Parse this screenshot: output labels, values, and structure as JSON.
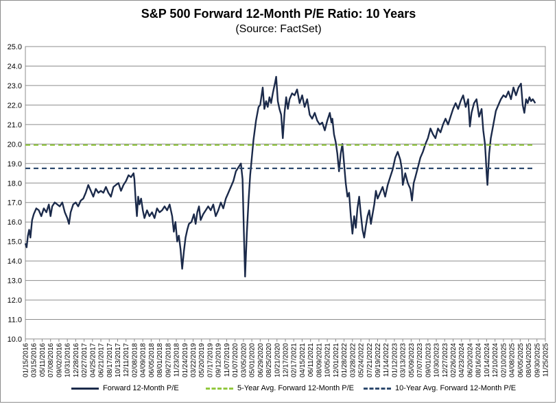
{
  "chart_data": {
    "type": "line",
    "title": "S&P 500 Forward 12-Month P/E Ratio: 10 Years",
    "subtitle": "(Source: FactSet)",
    "ylim": [
      10.0,
      25.0
    ],
    "y_ticks": [
      "10.0",
      "11.0",
      "12.0",
      "13.0",
      "14.0",
      "15.0",
      "16.0",
      "17.0",
      "18.0",
      "19.0",
      "20.0",
      "21.0",
      "22.0",
      "23.0",
      "24.0",
      "25.0"
    ],
    "x_ticks": [
      "01/15/2016",
      "03/15/2016",
      "05/11/2016",
      "07/08/2016",
      "09/02/2016",
      "10/31/2016",
      "12/28/2016",
      "02/27/2017",
      "04/25/2017",
      "06/21/2017",
      "08/17/2017",
      "10/13/2017",
      "12/11/2017",
      "02/08/2018",
      "04/09/2018",
      "06/05/2018",
      "08/01/2018",
      "09/27/2018",
      "11/23/2018",
      "01/24/2019",
      "03/22/2019",
      "05/20/2019",
      "07/17/2019",
      "09/12/2019",
      "11/07/2019",
      "01/07/2020",
      "03/05/2020",
      "05/01/2020",
      "06/29/2020",
      "08/25/2020",
      "10/21/2020",
      "12/17/2020",
      "02/17/2021",
      "04/15/2021",
      "06/11/2021",
      "08/09/2021",
      "10/05/2021",
      "12/01/2021",
      "01/28/2022",
      "03/28/2022",
      "05/24/2022",
      "07/21/2022",
      "09/19/2022",
      "11/14/2022",
      "01/12/2023",
      "03/13/2023",
      "05/09/2023",
      "07/07/2023",
      "09/01/2023",
      "10/30/2023",
      "12/27/2023",
      "02/26/2024",
      "04/23/2024",
      "06/20/2024",
      "08/16/2024",
      "10/14/2024",
      "12/10/2024",
      "02/10/2025",
      "04/08/2025",
      "06/05/2025",
      "08/04/2025",
      "09/30/2025",
      "11/25/2025"
    ],
    "grid": true,
    "legend_position": "bottom",
    "series": [
      {
        "name": "Forward 12-Month P/E",
        "color": "#1b2a4a",
        "style": "solid",
        "values": [
          [
            0.0,
            14.9
          ],
          [
            0.15,
            14.7
          ],
          [
            0.3,
            15.3
          ],
          [
            0.45,
            15.6
          ],
          [
            0.6,
            15.2
          ],
          [
            0.8,
            16.1
          ],
          [
            1.0,
            16.4
          ],
          [
            1.3,
            16.7
          ],
          [
            1.6,
            16.6
          ],
          [
            1.9,
            16.3
          ],
          [
            2.2,
            16.7
          ],
          [
            2.5,
            16.5
          ],
          [
            2.8,
            16.9
          ],
          [
            3.0,
            16.3
          ],
          [
            3.2,
            16.8
          ],
          [
            3.5,
            17.0
          ],
          [
            3.8,
            16.9
          ],
          [
            4.1,
            16.8
          ],
          [
            4.4,
            17.0
          ],
          [
            4.7,
            16.5
          ],
          [
            5.0,
            16.2
          ],
          [
            5.2,
            15.9
          ],
          [
            5.4,
            16.5
          ],
          [
            5.7,
            16.9
          ],
          [
            6.0,
            17.0
          ],
          [
            6.3,
            16.8
          ],
          [
            6.6,
            17.1
          ],
          [
            6.9,
            17.2
          ],
          [
            7.2,
            17.5
          ],
          [
            7.5,
            17.9
          ],
          [
            7.8,
            17.6
          ],
          [
            8.1,
            17.3
          ],
          [
            8.4,
            17.7
          ],
          [
            8.7,
            17.5
          ],
          [
            9.0,
            17.6
          ],
          [
            9.3,
            17.5
          ],
          [
            9.6,
            17.8
          ],
          [
            9.9,
            17.5
          ],
          [
            10.2,
            17.3
          ],
          [
            10.5,
            17.8
          ],
          [
            10.8,
            17.9
          ],
          [
            11.1,
            18.0
          ],
          [
            11.4,
            17.6
          ],
          [
            11.7,
            17.9
          ],
          [
            12.0,
            18.1
          ],
          [
            12.3,
            18.4
          ],
          [
            12.6,
            18.3
          ],
          [
            12.9,
            18.5
          ],
          [
            13.0,
            18.2
          ],
          [
            13.15,
            17.1
          ],
          [
            13.3,
            16.3
          ],
          [
            13.45,
            17.3
          ],
          [
            13.6,
            16.9
          ],
          [
            13.8,
            17.2
          ],
          [
            14.0,
            16.6
          ],
          [
            14.2,
            16.2
          ],
          [
            14.5,
            16.6
          ],
          [
            14.8,
            16.3
          ],
          [
            15.1,
            16.5
          ],
          [
            15.4,
            16.2
          ],
          [
            15.7,
            16.7
          ],
          [
            16.0,
            16.5
          ],
          [
            16.3,
            16.6
          ],
          [
            16.6,
            16.8
          ],
          [
            16.9,
            16.6
          ],
          [
            17.2,
            16.9
          ],
          [
            17.5,
            16.3
          ],
          [
            17.7,
            15.5
          ],
          [
            17.9,
            16.0
          ],
          [
            18.1,
            15.0
          ],
          [
            18.3,
            15.3
          ],
          [
            18.5,
            14.6
          ],
          [
            18.7,
            13.6
          ],
          [
            18.9,
            14.5
          ],
          [
            19.1,
            15.2
          ],
          [
            19.3,
            15.6
          ],
          [
            19.5,
            15.9
          ],
          [
            19.8,
            16.0
          ],
          [
            20.1,
            16.4
          ],
          [
            20.3,
            15.9
          ],
          [
            20.5,
            16.5
          ],
          [
            20.7,
            16.8
          ],
          [
            20.9,
            16.1
          ],
          [
            21.2,
            16.4
          ],
          [
            21.5,
            16.6
          ],
          [
            21.8,
            16.8
          ],
          [
            22.1,
            16.6
          ],
          [
            22.4,
            16.9
          ],
          [
            22.7,
            16.3
          ],
          [
            23.0,
            16.6
          ],
          [
            23.3,
            17.0
          ],
          [
            23.6,
            16.7
          ],
          [
            23.9,
            17.2
          ],
          [
            24.2,
            17.5
          ],
          [
            24.5,
            17.8
          ],
          [
            24.8,
            18.1
          ],
          [
            25.1,
            18.6
          ],
          [
            25.4,
            18.8
          ],
          [
            25.7,
            19.0
          ],
          [
            25.9,
            18.2
          ],
          [
            26.05,
            15.5
          ],
          [
            26.2,
            13.2
          ],
          [
            26.4,
            15.4
          ],
          [
            26.6,
            17.0
          ],
          [
            26.8,
            18.4
          ],
          [
            27.0,
            19.3
          ],
          [
            27.2,
            20.2
          ],
          [
            27.5,
            21.2
          ],
          [
            27.8,
            21.9
          ],
          [
            28.0,
            22.0
          ],
          [
            28.3,
            22.9
          ],
          [
            28.5,
            21.8
          ],
          [
            28.7,
            22.2
          ],
          [
            28.9,
            21.9
          ],
          [
            29.1,
            22.4
          ],
          [
            29.3,
            22.1
          ],
          [
            29.5,
            22.6
          ],
          [
            29.8,
            23.2
          ],
          [
            29.9,
            23.45
          ],
          [
            30.1,
            22.2
          ],
          [
            30.3,
            21.8
          ],
          [
            30.5,
            21.5
          ],
          [
            30.7,
            20.3
          ],
          [
            30.9,
            21.6
          ],
          [
            31.1,
            22.4
          ],
          [
            31.3,
            21.8
          ],
          [
            31.5,
            22.3
          ],
          [
            31.8,
            22.6
          ],
          [
            32.1,
            22.5
          ],
          [
            32.4,
            22.8
          ],
          [
            32.7,
            22.1
          ],
          [
            33.0,
            22.5
          ],
          [
            33.3,
            21.9
          ],
          [
            33.6,
            22.3
          ],
          [
            33.9,
            21.5
          ],
          [
            34.2,
            21.3
          ],
          [
            34.5,
            21.6
          ],
          [
            34.8,
            21.2
          ],
          [
            35.1,
            21.0
          ],
          [
            35.4,
            21.1
          ],
          [
            35.7,
            20.7
          ],
          [
            36.0,
            21.2
          ],
          [
            36.3,
            21.6
          ],
          [
            36.5,
            21.1
          ],
          [
            36.6,
            21.3
          ],
          [
            36.8,
            20.5
          ],
          [
            37.0,
            20.1
          ],
          [
            37.2,
            19.5
          ],
          [
            37.4,
            18.6
          ],
          [
            37.6,
            19.5
          ],
          [
            37.8,
            20.0
          ],
          [
            38.0,
            19.0
          ],
          [
            38.2,
            18.0
          ],
          [
            38.4,
            17.3
          ],
          [
            38.6,
            17.5
          ],
          [
            38.8,
            16.3
          ],
          [
            39.0,
            15.4
          ],
          [
            39.2,
            16.3
          ],
          [
            39.4,
            15.7
          ],
          [
            39.6,
            16.7
          ],
          [
            39.8,
            17.3
          ],
          [
            40.0,
            16.4
          ],
          [
            40.2,
            15.6
          ],
          [
            40.4,
            15.2
          ],
          [
            40.6,
            15.8
          ],
          [
            40.8,
            16.3
          ],
          [
            41.0,
            16.6
          ],
          [
            41.2,
            15.9
          ],
          [
            41.4,
            16.4
          ],
          [
            41.6,
            16.9
          ],
          [
            41.8,
            17.6
          ],
          [
            42.0,
            17.2
          ],
          [
            42.3,
            17.5
          ],
          [
            42.6,
            17.8
          ],
          [
            42.9,
            17.3
          ],
          [
            43.2,
            17.9
          ],
          [
            43.5,
            18.3
          ],
          [
            43.8,
            18.7
          ],
          [
            44.1,
            19.3
          ],
          [
            44.4,
            19.6
          ],
          [
            44.7,
            19.2
          ],
          [
            44.9,
            18.7
          ],
          [
            45.0,
            17.9
          ],
          [
            45.3,
            18.5
          ],
          [
            45.6,
            18.0
          ],
          [
            45.9,
            17.7
          ],
          [
            46.1,
            17.1
          ],
          [
            46.3,
            18.0
          ],
          [
            46.5,
            18.3
          ],
          [
            46.8,
            18.8
          ],
          [
            47.1,
            19.3
          ],
          [
            47.4,
            19.6
          ],
          [
            47.7,
            20.0
          ],
          [
            48.0,
            20.3
          ],
          [
            48.3,
            20.8
          ],
          [
            48.6,
            20.5
          ],
          [
            48.9,
            20.3
          ],
          [
            49.2,
            20.8
          ],
          [
            49.5,
            20.6
          ],
          [
            49.8,
            21.0
          ],
          [
            50.1,
            21.3
          ],
          [
            50.4,
            21.0
          ],
          [
            50.7,
            21.4
          ],
          [
            51.0,
            21.8
          ],
          [
            51.3,
            22.1
          ],
          [
            51.6,
            21.8
          ],
          [
            51.9,
            22.2
          ],
          [
            52.2,
            22.5
          ],
          [
            52.5,
            21.9
          ],
          [
            52.8,
            22.3
          ],
          [
            53.0,
            20.9
          ],
          [
            53.2,
            21.6
          ],
          [
            53.5,
            22.1
          ],
          [
            53.8,
            22.3
          ],
          [
            54.1,
            21.4
          ],
          [
            54.4,
            21.8
          ],
          [
            54.6,
            20.7
          ],
          [
            54.8,
            20.0
          ],
          [
            54.9,
            19.3
          ],
          [
            55.0,
            18.5
          ],
          [
            55.1,
            17.9
          ],
          [
            55.3,
            19.5
          ],
          [
            55.5,
            20.3
          ],
          [
            55.8,
            21.0
          ],
          [
            56.1,
            21.7
          ],
          [
            56.4,
            22.0
          ],
          [
            56.7,
            22.3
          ],
          [
            57.0,
            22.5
          ],
          [
            57.3,
            22.4
          ],
          [
            57.6,
            22.7
          ],
          [
            57.9,
            22.3
          ],
          [
            58.2,
            22.9
          ],
          [
            58.5,
            22.5
          ],
          [
            58.8,
            22.9
          ],
          [
            59.1,
            23.1
          ],
          [
            59.3,
            22.0
          ],
          [
            59.5,
            21.6
          ],
          [
            59.7,
            22.3
          ],
          [
            59.9,
            22.1
          ],
          [
            60.1,
            22.4
          ],
          [
            60.3,
            22.2
          ],
          [
            60.5,
            22.3
          ],
          [
            60.8,
            22.1
          ]
        ]
      },
      {
        "name": "5-Year Avg. Forward 12-Month P/E",
        "color": "#92c83e",
        "style": "dashed",
        "values": [
          [
            0.0,
            19.95
          ],
          [
            60.8,
            19.95
          ]
        ]
      },
      {
        "name": "10-Year Avg. Forward 12-Month P/E",
        "color": "#2e4a6e",
        "style": "dashed",
        "values": [
          [
            0.0,
            18.75
          ],
          [
            60.8,
            18.75
          ]
        ]
      }
    ]
  }
}
